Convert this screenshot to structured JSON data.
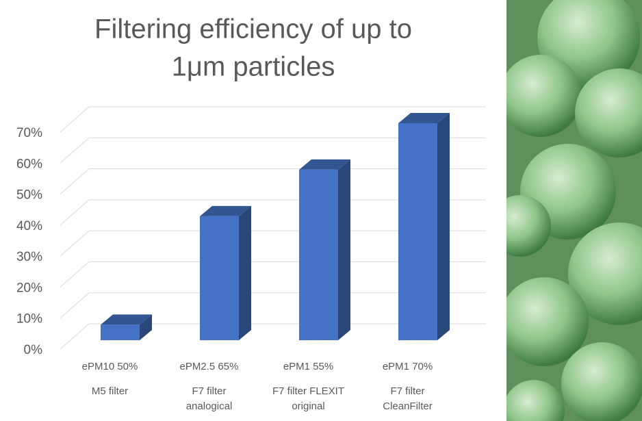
{
  "chart_data": {
    "type": "bar3d",
    "title": [
      "Filtering efficiency of up to",
      "1μm particles"
    ],
    "categories": [
      [
        "ePM10 50%",
        "M5 filter"
      ],
      [
        "ePM2.5 65%",
        "F7 filter",
        "analogical"
      ],
      [
        "ePM1 55%",
        "F7 filter FLEXIT",
        "original"
      ],
      [
        "ePM1 70%",
        "F7 filter",
        "CleanFilter"
      ]
    ],
    "values": [
      5,
      40,
      55,
      70
    ],
    "color": "#4472c4",
    "ylim": [
      0,
      70
    ],
    "yticks": [
      {
        "value": 0,
        "label": "0%"
      },
      {
        "value": 10,
        "label": "10%"
      },
      {
        "value": 20,
        "label": "20%"
      },
      {
        "value": 30,
        "label": "30%"
      },
      {
        "value": 40,
        "label": "40%"
      },
      {
        "value": 50,
        "label": "50%"
      },
      {
        "value": 60,
        "label": "60%"
      },
      {
        "value": 70,
        "label": "70%"
      }
    ],
    "grid": true
  }
}
